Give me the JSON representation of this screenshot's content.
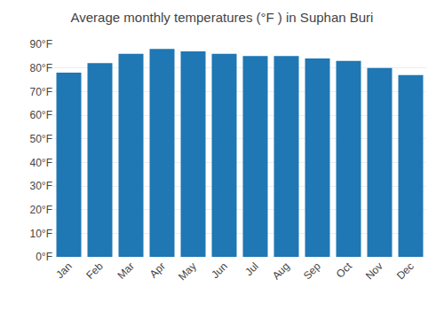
{
  "chart_data": {
    "type": "bar",
    "title": "Average monthly temperatures (°F ) in Suphan Buri",
    "categories": [
      "Jan",
      "Feb",
      "Mar",
      "Apr",
      "May",
      "Jun",
      "Jul",
      "Aug",
      "Sep",
      "Oct",
      "Nov",
      "Dec"
    ],
    "values": [
      78,
      82,
      86,
      88,
      87,
      86,
      85,
      85,
      84,
      83,
      80,
      77
    ],
    "ylim": [
      0,
      90
    ],
    "yticks": [
      {
        "value": 0,
        "label": "0°F"
      },
      {
        "value": 10,
        "label": "10°F"
      },
      {
        "value": 20,
        "label": "20°F"
      },
      {
        "value": 30,
        "label": "30°F"
      },
      {
        "value": 40,
        "label": "40°F"
      },
      {
        "value": 50,
        "label": "50°F"
      },
      {
        "value": 60,
        "label": "60°F"
      },
      {
        "value": 70,
        "label": "70°F"
      },
      {
        "value": 80,
        "label": "80°F"
      },
      {
        "value": 90,
        "label": "90°F"
      }
    ],
    "grid": true
  }
}
